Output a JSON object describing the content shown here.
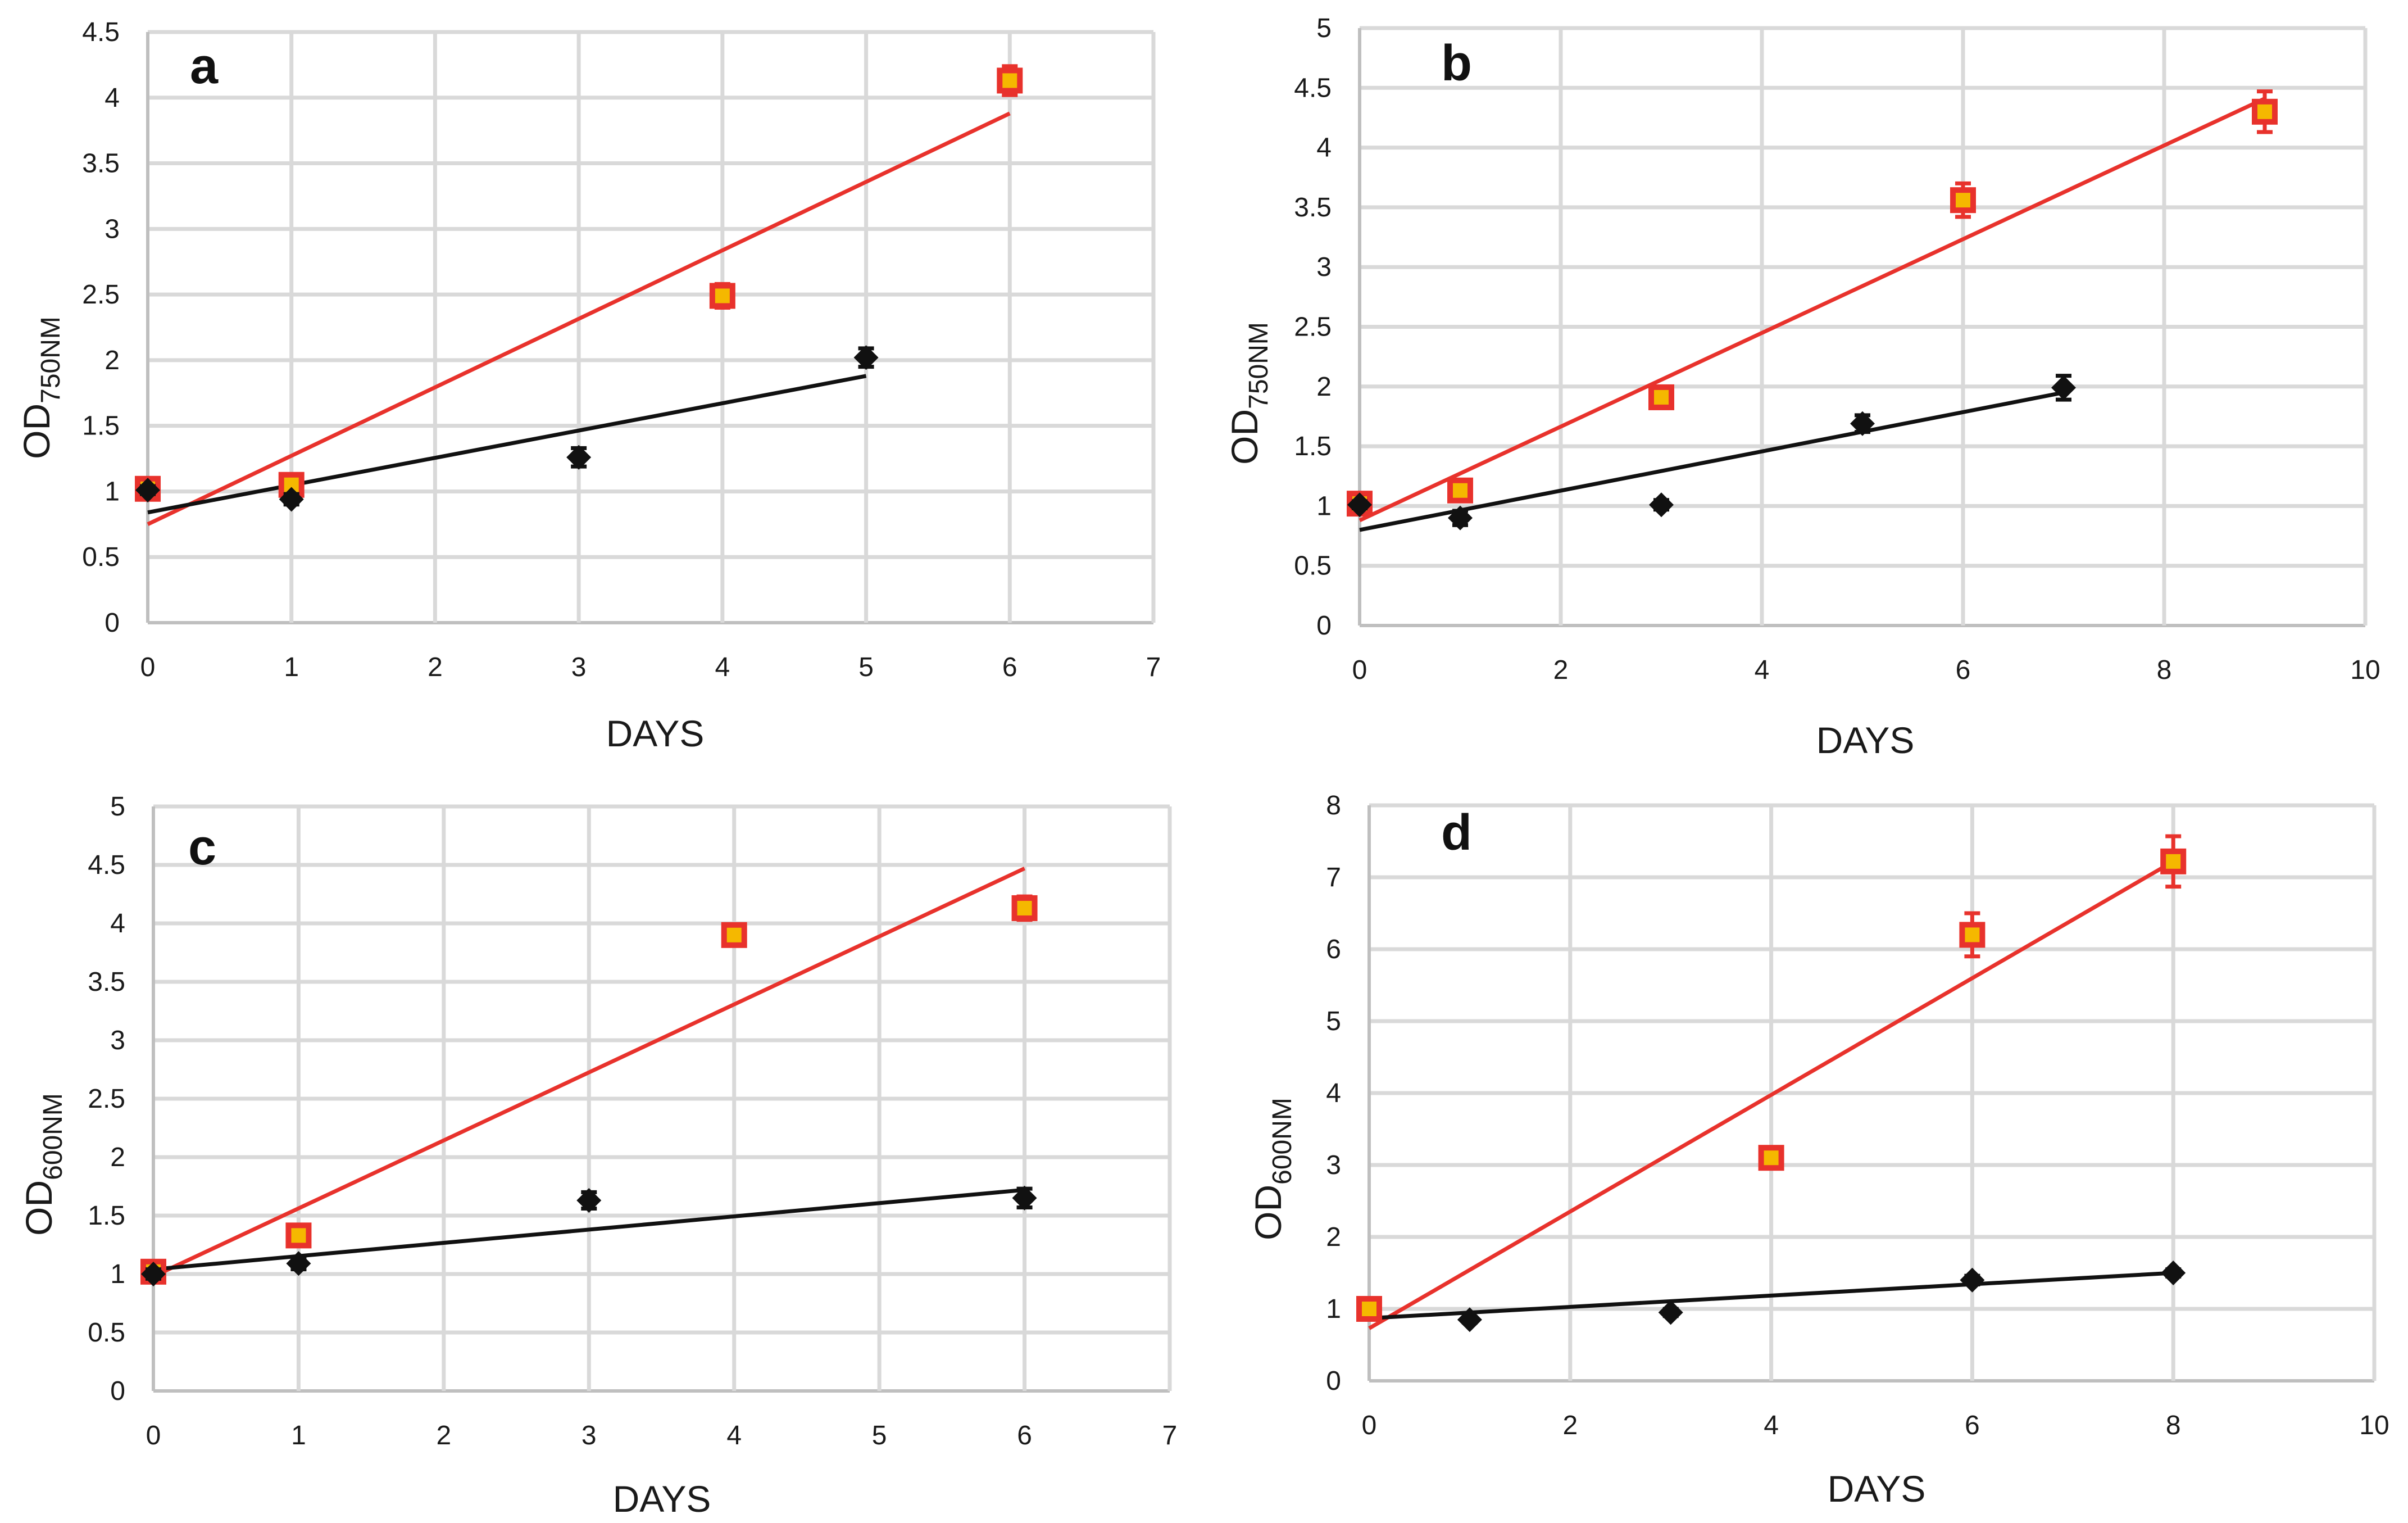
{
  "colors": {
    "treated": "#e8322c",
    "treated_fill": "#f5b800",
    "control": "#111111",
    "grid": "#d9d9d9"
  },
  "chart_data": [
    {
      "type": "scatter",
      "panel": "a",
      "xlabel": "DAYS",
      "ylabel_main": "OD",
      "ylabel_sub": "750NM",
      "xlim": [
        0,
        7
      ],
      "ylim": [
        0,
        4.5
      ],
      "xticks": [
        0,
        1,
        2,
        3,
        4,
        5,
        6,
        7
      ],
      "yticks": [
        0,
        0.5,
        1,
        1.5,
        2,
        2.5,
        3,
        3.5,
        4,
        4.5
      ],
      "series": [
        {
          "marker": "square",
          "color": "#e8322c",
          "points": [
            {
              "x": 0,
              "y": 1.02,
              "err": 0.04
            },
            {
              "x": 1,
              "y": 1.05,
              "err": 0.04
            },
            {
              "x": 4,
              "y": 2.49,
              "err": 0.09
            },
            {
              "x": 6,
              "y": 4.13,
              "err": 0.11
            }
          ],
          "trendline": {
            "x0": 0,
            "y0": 0.75,
            "x1": 6,
            "y1": 3.88
          }
        },
        {
          "marker": "diamond",
          "color": "#111111",
          "points": [
            {
              "x": 0,
              "y": 1.01,
              "err": 0.03
            },
            {
              "x": 1,
              "y": 0.94,
              "err": 0.04
            },
            {
              "x": 3,
              "y": 1.26,
              "err": 0.07
            },
            {
              "x": 5,
              "y": 2.02,
              "err": 0.07
            }
          ],
          "trendline": {
            "x0": 0,
            "y0": 0.84,
            "x1": 5,
            "y1": 1.88
          }
        }
      ]
    },
    {
      "type": "scatter",
      "panel": "b",
      "xlabel": "DAYS",
      "ylabel_main": "OD",
      "ylabel_sub": "750NM",
      "xlim": [
        0,
        10
      ],
      "ylim": [
        0,
        5
      ],
      "xticks": [
        0,
        2,
        4,
        6,
        8,
        10
      ],
      "yticks": [
        0,
        0.5,
        1,
        1.5,
        2,
        2.5,
        3,
        3.5,
        4,
        4.5,
        5
      ],
      "series": [
        {
          "marker": "square",
          "color": "#e8322c",
          "points": [
            {
              "x": 0,
              "y": 1.02,
              "err": 0.04
            },
            {
              "x": 1,
              "y": 1.13,
              "err": 0.05
            },
            {
              "x": 3,
              "y": 1.91,
              "err": 0.09
            },
            {
              "x": 6,
              "y": 3.56,
              "err": 0.14
            },
            {
              "x": 9,
              "y": 4.3,
              "err": 0.17
            }
          ],
          "trendline": {
            "x0": 0,
            "y0": 0.88,
            "x1": 9,
            "y1": 4.41
          }
        },
        {
          "marker": "diamond",
          "color": "#111111",
          "points": [
            {
              "x": 0,
              "y": 1.01,
              "err": 0.03
            },
            {
              "x": 1,
              "y": 0.9,
              "err": 0.06
            },
            {
              "x": 3,
              "y": 1.01,
              "err": 0.04
            },
            {
              "x": 5,
              "y": 1.69,
              "err": 0.07
            },
            {
              "x": 7,
              "y": 1.99,
              "err": 0.1
            }
          ],
          "trendline": {
            "x0": 0,
            "y0": 0.8,
            "x1": 7,
            "y1": 1.95
          }
        }
      ]
    },
    {
      "type": "scatter",
      "panel": "c",
      "xlabel": "DAYS",
      "ylabel_main": "OD",
      "ylabel_sub": "600NM",
      "xlim": [
        0,
        7
      ],
      "ylim": [
        0,
        5
      ],
      "xticks": [
        0,
        1,
        2,
        3,
        4,
        5,
        6,
        7
      ],
      "yticks": [
        0,
        0.5,
        1,
        1.5,
        2,
        2.5,
        3,
        3.5,
        4,
        4.5,
        5
      ],
      "series": [
        {
          "marker": "square",
          "color": "#e8322c",
          "points": [
            {
              "x": 0,
              "y": 1.02,
              "err": 0.04
            },
            {
              "x": 1,
              "y": 1.33,
              "err": 0.05
            },
            {
              "x": 4,
              "y": 3.9,
              "err": 0.07
            },
            {
              "x": 6,
              "y": 4.13,
              "err": 0.1
            }
          ],
          "trendline": {
            "x0": 0,
            "y0": 0.98,
            "x1": 6,
            "y1": 4.47
          }
        },
        {
          "marker": "diamond",
          "color": "#111111",
          "points": [
            {
              "x": 0,
              "y": 1.0,
              "err": 0.04
            },
            {
              "x": 1,
              "y": 1.09,
              "err": 0.05
            },
            {
              "x": 3,
              "y": 1.63,
              "err": 0.07
            },
            {
              "x": 6,
              "y": 1.65,
              "err": 0.08
            }
          ],
          "trendline": {
            "x0": 0,
            "y0": 1.04,
            "x1": 6,
            "y1": 1.72
          }
        }
      ]
    },
    {
      "type": "scatter",
      "panel": "d",
      "xlabel": "DAYS",
      "ylabel_main": "OD",
      "ylabel_sub": "600NM",
      "xlim": [
        0,
        10
      ],
      "ylim": [
        0,
        8
      ],
      "xticks": [
        0,
        2,
        4,
        6,
        8,
        10
      ],
      "yticks": [
        0,
        1,
        2,
        3,
        4,
        5,
        6,
        7,
        8
      ],
      "series": [
        {
          "marker": "square",
          "color": "#e8322c",
          "points": [
            {
              "x": 0,
              "y": 1.0,
              "err": 0.05
            },
            {
              "x": 4,
              "y": 3.1,
              "err": 0.1
            },
            {
              "x": 6,
              "y": 6.2,
              "err": 0.3
            },
            {
              "x": 8,
              "y": 7.22,
              "err": 0.35
            }
          ],
          "trendline": {
            "x0": 0,
            "y0": 0.73,
            "x1": 8,
            "y1": 7.22
          }
        },
        {
          "marker": "diamond",
          "color": "#111111",
          "points": [
            {
              "x": 1,
              "y": 0.85,
              "err": 0.04
            },
            {
              "x": 3,
              "y": 0.95,
              "err": 0.05
            },
            {
              "x": 6,
              "y": 1.4,
              "err": 0.06
            },
            {
              "x": 8,
              "y": 1.5,
              "err": 0.05
            }
          ],
          "trendline": {
            "x0": 0,
            "y0": 0.87,
            "x1": 8,
            "y1": 1.5
          }
        }
      ]
    }
  ]
}
